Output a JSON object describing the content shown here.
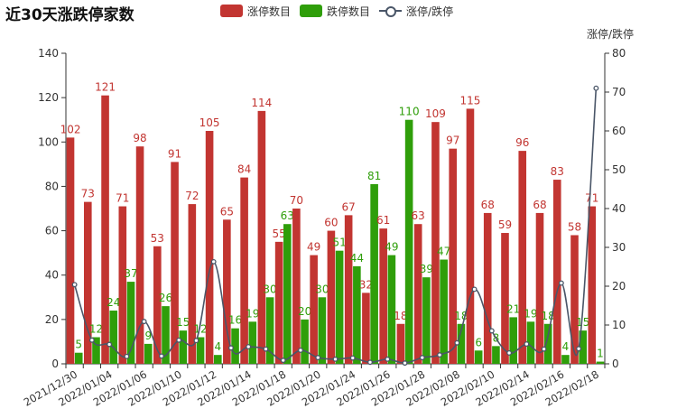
{
  "title": "近30天涨跌停家数",
  "colors": {
    "zt": "#c23531",
    "dt": "#2f9e0a",
    "ratio": "#4a5668",
    "axis": "#333333"
  },
  "chart_data": {
    "type": "bar",
    "title": "近30天涨跌停家数",
    "categories": [
      "2021/12/30",
      "2021/12/31",
      "2022/01/04",
      "2022/01/05",
      "2022/01/06",
      "2022/01/07",
      "2022/01/10",
      "2022/01/11",
      "2022/01/12",
      "2022/01/13",
      "2022/01/14",
      "2022/01/17",
      "2022/01/18",
      "2022/01/19",
      "2022/01/20",
      "2022/01/21",
      "2022/01/24",
      "2022/01/25",
      "2022/01/26",
      "2022/01/27",
      "2022/01/28",
      "2022/02/07",
      "2022/02/08",
      "2022/02/09",
      "2022/02/10",
      "2022/02/11",
      "2022/02/14",
      "2022/02/15",
      "2022/02/16",
      "2022/02/17",
      "2022/02/18"
    ],
    "x_tick_labels": [
      "2021/12/30",
      "2022/01/04",
      "2022/01/06",
      "2022/01/10",
      "2022/01/12",
      "2022/01/14",
      "2022/01/18",
      "2022/01/20",
      "2022/01/24",
      "2022/01/26",
      "2022/01/28",
      "2022/02/08",
      "2022/02/10",
      "2022/02/14",
      "2022/02/16",
      "2022/02/18"
    ],
    "series": [
      {
        "name": "涨停数目",
        "type": "bar",
        "axis": "left",
        "values": [
          102,
          73,
          121,
          71,
          98,
          53,
          91,
          72,
          105,
          65,
          84,
          114,
          55,
          70,
          49,
          60,
          67,
          32,
          61,
          18,
          63,
          109,
          97,
          115,
          68,
          59,
          96,
          68,
          83,
          58,
          71
        ]
      },
      {
        "name": "跌停数目",
        "type": "bar",
        "axis": "left",
        "values": [
          5,
          12,
          24,
          37,
          9,
          26,
          15,
          12,
          4,
          16,
          19,
          30,
          63,
          20,
          30,
          51,
          44,
          81,
          49,
          110,
          39,
          47,
          18,
          6,
          8,
          21,
          19,
          18,
          4,
          15,
          1
        ]
      },
      {
        "name": "涨停/跌停",
        "type": "line",
        "axis": "right",
        "values": [
          20.4,
          6.1,
          5.0,
          1.9,
          10.9,
          2.0,
          6.1,
          6.0,
          26.3,
          4.1,
          4.4,
          3.8,
          0.9,
          3.5,
          1.6,
          1.2,
          1.5,
          0.4,
          1.2,
          0.2,
          1.6,
          2.3,
          5.4,
          19.2,
          8.5,
          2.8,
          5.1,
          3.8,
          20.8,
          3.9,
          71.0
        ]
      }
    ],
    "y_left": {
      "range": [
        0,
        140
      ],
      "ticks": [
        0,
        20,
        40,
        60,
        80,
        100,
        120,
        140
      ]
    },
    "y_right": {
      "name": "涨停/跌停",
      "range": [
        0,
        80
      ],
      "ticks": [
        0,
        10,
        20,
        30,
        40,
        50,
        60,
        70,
        80
      ]
    },
    "grid": false,
    "legend_position": "top"
  }
}
